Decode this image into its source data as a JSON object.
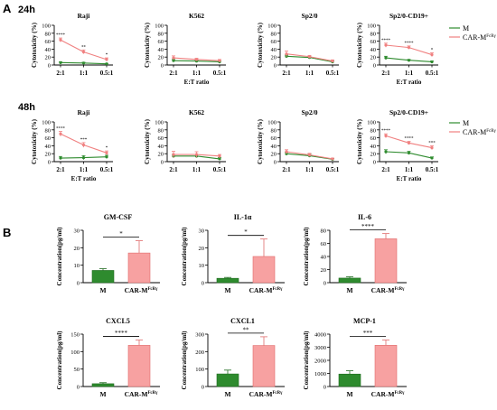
{
  "panels": {
    "a": "A",
    "b": "B"
  },
  "rows": {
    "r24": "24h",
    "r48": "48h"
  },
  "legend": {
    "m": "M",
    "car": "CAR-M",
    "sup": "FcRγ"
  },
  "colors": {
    "m": "#2e8b2e",
    "car": "#f08080",
    "barM": "#2e8b2e",
    "barCar": "#f7a1a1"
  },
  "chart_data": [
    {
      "id": "r1c1",
      "type": "line",
      "title": "Raji",
      "ylabel": "Cytotoxicity (%)",
      "xlabel": "",
      "categories": [
        "2:1",
        "1:1",
        "0.5:1"
      ],
      "ylim": [
        0,
        100
      ],
      "yticks": [
        0,
        20,
        40,
        60,
        80,
        100
      ],
      "series": [
        {
          "name": "M",
          "values": [
            6,
            5,
            3
          ],
          "err": [
            2,
            2,
            1
          ]
        },
        {
          "name": "CAR-MFcRγ",
          "values": [
            63,
            33,
            14
          ],
          "err": [
            5,
            5,
            4
          ]
        }
      ],
      "sig": [
        "****",
        "**",
        "*"
      ]
    },
    {
      "id": "r1c2",
      "type": "line",
      "title": "K562",
      "ylabel": "Cytotoxicity (%)",
      "xlabel": "E:T ratio",
      "categories": [
        "2:1",
        "1:1",
        "0.5:1"
      ],
      "ylim": [
        0,
        100
      ],
      "yticks": [
        0,
        20,
        40,
        60,
        80,
        100
      ],
      "series": [
        {
          "name": "M",
          "values": [
            11,
            10,
            8
          ],
          "err": [
            3,
            2,
            2
          ]
        },
        {
          "name": "CAR-MFcRγ",
          "values": [
            18,
            14,
            11
          ],
          "err": [
            5,
            3,
            3
          ]
        }
      ],
      "sig": [
        "",
        "",
        ""
      ]
    },
    {
      "id": "r1c3",
      "type": "line",
      "title": "Sp2/0",
      "ylabel": "Cytotoxicity (%)",
      "xlabel": "",
      "categories": [
        "2:1",
        "1:1",
        "0.5:1"
      ],
      "ylim": [
        0,
        100
      ],
      "yticks": [
        0,
        20,
        40,
        60,
        80,
        100
      ],
      "series": [
        {
          "name": "M",
          "values": [
            22,
            19,
            8
          ],
          "err": [
            3,
            2,
            2
          ]
        },
        {
          "name": "CAR-MFcRγ",
          "values": [
            28,
            21,
            10
          ],
          "err": [
            7,
            3,
            3
          ]
        }
      ],
      "sig": [
        "",
        "",
        ""
      ]
    },
    {
      "id": "r1c4",
      "type": "line",
      "title": "Sp2/0-CD19+",
      "ylabel": "Cytotoxicity (%)",
      "xlabel": "E:T ratio",
      "categories": [
        "2:1",
        "1:1",
        "0.5:1"
      ],
      "ylim": [
        0,
        100
      ],
      "yticks": [
        0,
        20,
        40,
        60,
        80,
        100
      ],
      "series": [
        {
          "name": "M",
          "values": [
            18,
            12,
            8
          ],
          "err": [
            4,
            2,
            2
          ]
        },
        {
          "name": "CAR-MFcRγ",
          "values": [
            50,
            44,
            26
          ],
          "err": [
            5,
            4,
            5
          ]
        }
      ],
      "sig": [
        "****",
        "****",
        "*"
      ]
    },
    {
      "id": "r2c1",
      "type": "line",
      "title": "Raji",
      "ylabel": "Cytotoxicity (%)",
      "xlabel": "E:T ratio",
      "categories": [
        "2:1",
        "1:1",
        "0.5:1"
      ],
      "ylim": [
        0,
        100
      ],
      "yticks": [
        0,
        20,
        40,
        60,
        80,
        100
      ],
      "series": [
        {
          "name": "M",
          "values": [
            9,
            10,
            12
          ],
          "err": [
            4,
            5,
            4
          ]
        },
        {
          "name": "CAR-MFcRγ",
          "values": [
            70,
            42,
            22
          ],
          "err": [
            6,
            6,
            5
          ]
        }
      ],
      "sig": [
        "****",
        "***",
        "*"
      ]
    },
    {
      "id": "r2c2",
      "type": "line",
      "title": "K562",
      "ylabel": "Cytotoxicity (%)",
      "xlabel": "",
      "categories": [
        "2:1",
        "1:1",
        "0.5:1"
      ],
      "ylim": [
        0,
        100
      ],
      "yticks": [
        0,
        20,
        40,
        60,
        80,
        100
      ],
      "series": [
        {
          "name": "M",
          "values": [
            14,
            14,
            7
          ],
          "err": [
            4,
            4,
            3
          ]
        },
        {
          "name": "CAR-MFcRγ",
          "values": [
            18,
            18,
            14
          ],
          "err": [
            8,
            7,
            4
          ]
        }
      ],
      "sig": [
        "",
        "",
        ""
      ]
    },
    {
      "id": "r2c3",
      "type": "line",
      "title": "Sp2/0",
      "ylabel": "Cytotoxicity (%)",
      "xlabel": "",
      "categories": [
        "2:1",
        "1:1",
        "0.5:1"
      ],
      "ylim": [
        0,
        100
      ],
      "yticks": [
        0,
        20,
        40,
        60,
        80,
        100
      ],
      "series": [
        {
          "name": "M",
          "values": [
            20,
            15,
            6
          ],
          "err": [
            4,
            4,
            2
          ]
        },
        {
          "name": "CAR-MFcRγ",
          "values": [
            25,
            17,
            7
          ],
          "err": [
            5,
            4,
            2
          ]
        }
      ],
      "sig": [
        "",
        "",
        ""
      ]
    },
    {
      "id": "r2c4",
      "type": "line",
      "title": "Sp2/0-CD19+",
      "ylabel": "Cytotoxicity (%)",
      "xlabel": "E:T ratio",
      "categories": [
        "2:1",
        "1:1",
        "0.5:1"
      ],
      "ylim": [
        0,
        100
      ],
      "yticks": [
        0,
        20,
        40,
        60,
        80,
        100
      ],
      "series": [
        {
          "name": "M",
          "values": [
            25,
            22,
            9
          ],
          "err": [
            5,
            4,
            3
          ]
        },
        {
          "name": "CAR-MFcRγ",
          "values": [
            65,
            47,
            35
          ],
          "err": [
            5,
            4,
            5
          ]
        }
      ],
      "sig": [
        "****",
        "****",
        "***"
      ]
    },
    {
      "id": "b1",
      "type": "bar",
      "title": "GM-CSF",
      "ylabel": "Concentration(pg/ml)",
      "categories": [
        "M",
        "CAR-MFcRγ"
      ],
      "ylim": [
        0,
        30
      ],
      "yticks": [
        0,
        10,
        20,
        30
      ],
      "values": [
        7,
        17
      ],
      "err": [
        1,
        7
      ],
      "sig": "*"
    },
    {
      "id": "b2",
      "type": "bar",
      "title": "IL-1α",
      "ylabel": "Concentration(pg/ml)",
      "categories": [
        "M",
        "CAR-MFcRγ"
      ],
      "ylim": [
        0,
        30
      ],
      "yticks": [
        0,
        10,
        20,
        30
      ],
      "values": [
        2.5,
        15
      ],
      "err": [
        0.5,
        10
      ],
      "sig": "*"
    },
    {
      "id": "b3",
      "type": "bar",
      "title": "IL-6",
      "ylabel": "Concentration(pg/ml)",
      "categories": [
        "M",
        "CAR-MFcRγ"
      ],
      "ylim": [
        0,
        80
      ],
      "yticks": [
        0,
        20,
        40,
        60,
        80
      ],
      "values": [
        7,
        67
      ],
      "err": [
        2,
        8
      ],
      "sig": "****"
    },
    {
      "id": "b4",
      "type": "bar",
      "title": "CXCL5",
      "ylabel": "Concentration(pg/ml)",
      "categories": [
        "M",
        "CAR-MFcRγ"
      ],
      "ylim": [
        0,
        150
      ],
      "yticks": [
        0,
        50,
        100,
        150
      ],
      "values": [
        8,
        118
      ],
      "err": [
        3,
        15
      ],
      "sig": "****"
    },
    {
      "id": "b5",
      "type": "bar",
      "title": "CXCL1",
      "ylabel": "Concentration(pg/ml)",
      "categories": [
        "M",
        "CAR-MFcRγ"
      ],
      "ylim": [
        0,
        300
      ],
      "yticks": [
        0,
        100,
        200,
        300
      ],
      "values": [
        72,
        235
      ],
      "err": [
        22,
        50
      ],
      "sig": "**"
    },
    {
      "id": "b6",
      "type": "bar",
      "title": "MCP-1",
      "ylabel": "Concentration(pg/ml)",
      "categories": [
        "M",
        "CAR-MFcRγ"
      ],
      "ylim": [
        0,
        4000
      ],
      "yticks": [
        0,
        1000,
        2000,
        3000,
        4000
      ],
      "values": [
        950,
        3150
      ],
      "err": [
        250,
        400
      ],
      "sig": "***"
    }
  ]
}
